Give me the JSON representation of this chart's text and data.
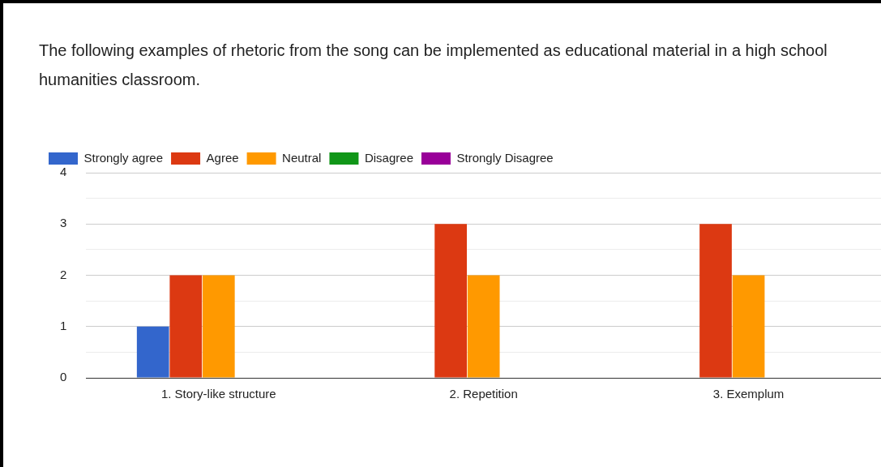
{
  "chart_data": {
    "type": "bar",
    "title": "The following examples of rhetoric from the song can be implemented as educational material in a high school humanities classroom.",
    "categories": [
      "1. Story-like structure",
      "2. Repetition",
      "3. Exemplum"
    ],
    "series": [
      {
        "name": "Strongly agree",
        "color": "#3366cc",
        "values": [
          1,
          0,
          0
        ]
      },
      {
        "name": "Agree",
        "color": "#dc3912",
        "values": [
          2,
          3,
          3
        ]
      },
      {
        "name": "Neutral",
        "color": "#ff9900",
        "values": [
          2,
          2,
          2
        ]
      },
      {
        "name": "Disagree",
        "color": "#109618",
        "values": [
          0,
          0,
          0
        ]
      },
      {
        "name": "Strongly Disagree",
        "color": "#990099",
        "values": [
          0,
          0,
          0
        ]
      }
    ],
    "ylim": [
      0,
      4
    ],
    "yticks": [
      0,
      {
        "value": 0.5,
        "label": null
      },
      1,
      {
        "value": 1.5,
        "label": null
      },
      2,
      {
        "value": 2.5,
        "label": null
      },
      3,
      {
        "value": 3.5,
        "label": null
      },
      4
    ],
    "grid": "y",
    "legend": "top left"
  }
}
